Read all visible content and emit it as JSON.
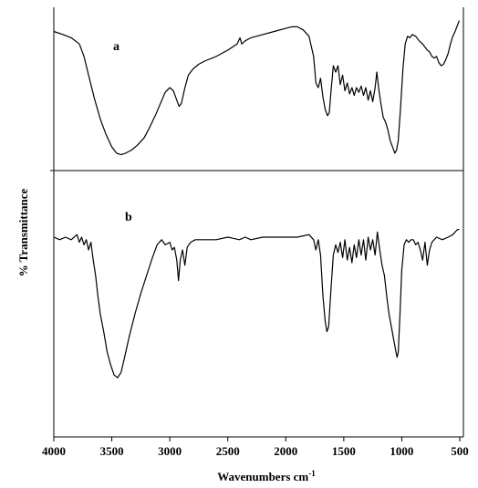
{
  "chart_data": {
    "type": "line",
    "xlabel": "Wavenumbers cm",
    "xlabel_sup": "-1",
    "ylabel": "% Transmittance",
    "xlim": [
      4000,
      500
    ],
    "x_reversed": true,
    "x_ticks": [
      4000,
      3500,
      3000,
      2500,
      2000,
      1500,
      1000,
      500
    ],
    "grid": false,
    "legend": "none",
    "line_color": "#000000",
    "panels": [
      {
        "label": "a",
        "points": [
          [
            4000,
            88
          ],
          [
            3920,
            86
          ],
          [
            3850,
            84
          ],
          [
            3780,
            80
          ],
          [
            3740,
            72
          ],
          [
            3700,
            60
          ],
          [
            3650,
            45
          ],
          [
            3600,
            32
          ],
          [
            3550,
            22
          ],
          [
            3500,
            14
          ],
          [
            3460,
            10
          ],
          [
            3420,
            9
          ],
          [
            3380,
            10
          ],
          [
            3330,
            12
          ],
          [
            3280,
            15
          ],
          [
            3220,
            20
          ],
          [
            3170,
            27
          ],
          [
            3120,
            35
          ],
          [
            3080,
            42
          ],
          [
            3040,
            49
          ],
          [
            3000,
            52
          ],
          [
            2970,
            50
          ],
          [
            2940,
            44
          ],
          [
            2920,
            40
          ],
          [
            2900,
            42
          ],
          [
            2870,
            52
          ],
          [
            2840,
            60
          ],
          [
            2800,
            64
          ],
          [
            2750,
            67
          ],
          [
            2700,
            69
          ],
          [
            2600,
            72
          ],
          [
            2500,
            76
          ],
          [
            2420,
            80
          ],
          [
            2395,
            84
          ],
          [
            2380,
            80
          ],
          [
            2350,
            82
          ],
          [
            2300,
            84
          ],
          [
            2200,
            86
          ],
          [
            2100,
            88
          ],
          [
            2000,
            90
          ],
          [
            1950,
            91
          ],
          [
            1900,
            91
          ],
          [
            1850,
            89
          ],
          [
            1800,
            85
          ],
          [
            1760,
            72
          ],
          [
            1740,
            55
          ],
          [
            1720,
            52
          ],
          [
            1700,
            58
          ],
          [
            1680,
            46
          ],
          [
            1660,
            38
          ],
          [
            1640,
            34
          ],
          [
            1625,
            36
          ],
          [
            1610,
            50
          ],
          [
            1590,
            66
          ],
          [
            1570,
            62
          ],
          [
            1550,
            66
          ],
          [
            1530,
            54
          ],
          [
            1510,
            60
          ],
          [
            1490,
            50
          ],
          [
            1470,
            55
          ],
          [
            1450,
            48
          ],
          [
            1430,
            52
          ],
          [
            1410,
            47
          ],
          [
            1390,
            52
          ],
          [
            1370,
            49
          ],
          [
            1350,
            53
          ],
          [
            1330,
            47
          ],
          [
            1310,
            52
          ],
          [
            1290,
            44
          ],
          [
            1270,
            50
          ],
          [
            1250,
            43
          ],
          [
            1230,
            52
          ],
          [
            1215,
            62
          ],
          [
            1200,
            52
          ],
          [
            1180,
            42
          ],
          [
            1160,
            33
          ],
          [
            1140,
            30
          ],
          [
            1120,
            25
          ],
          [
            1100,
            18
          ],
          [
            1080,
            14
          ],
          [
            1060,
            10
          ],
          [
            1045,
            12
          ],
          [
            1030,
            18
          ],
          [
            1010,
            40
          ],
          [
            990,
            64
          ],
          [
            970,
            80
          ],
          [
            950,
            85
          ],
          [
            930,
            84
          ],
          [
            910,
            86
          ],
          [
            880,
            85
          ],
          [
            850,
            82
          ],
          [
            820,
            80
          ],
          [
            800,
            78
          ],
          [
            780,
            76
          ],
          [
            760,
            75
          ],
          [
            740,
            72
          ],
          [
            720,
            71
          ],
          [
            700,
            72
          ],
          [
            680,
            68
          ],
          [
            660,
            66
          ],
          [
            640,
            67
          ],
          [
            620,
            70
          ],
          [
            600,
            74
          ],
          [
            580,
            80
          ],
          [
            560,
            85
          ],
          [
            540,
            88
          ],
          [
            520,
            92
          ],
          [
            505,
            95
          ]
        ]
      },
      {
        "label": "b",
        "points": [
          [
            4000,
            75
          ],
          [
            3950,
            74
          ],
          [
            3900,
            75
          ],
          [
            3850,
            74
          ],
          [
            3800,
            76
          ],
          [
            3780,
            73
          ],
          [
            3760,
            75
          ],
          [
            3740,
            72
          ],
          [
            3720,
            74
          ],
          [
            3700,
            70
          ],
          [
            3680,
            73
          ],
          [
            3660,
            66
          ],
          [
            3640,
            60
          ],
          [
            3620,
            52
          ],
          [
            3600,
            45
          ],
          [
            3570,
            38
          ],
          [
            3540,
            30
          ],
          [
            3510,
            25
          ],
          [
            3480,
            21
          ],
          [
            3450,
            20
          ],
          [
            3420,
            22
          ],
          [
            3390,
            28
          ],
          [
            3350,
            36
          ],
          [
            3300,
            45
          ],
          [
            3250,
            53
          ],
          [
            3200,
            60
          ],
          [
            3150,
            67
          ],
          [
            3110,
            72
          ],
          [
            3070,
            74
          ],
          [
            3040,
            72
          ],
          [
            3000,
            73
          ],
          [
            2980,
            70
          ],
          [
            2960,
            71
          ],
          [
            2940,
            66
          ],
          [
            2925,
            58
          ],
          [
            2910,
            66
          ],
          [
            2890,
            70
          ],
          [
            2870,
            64
          ],
          [
            2850,
            71
          ],
          [
            2820,
            73
          ],
          [
            2780,
            74
          ],
          [
            2700,
            74
          ],
          [
            2600,
            74
          ],
          [
            2500,
            75
          ],
          [
            2400,
            74
          ],
          [
            2350,
            75
          ],
          [
            2300,
            74
          ],
          [
            2200,
            75
          ],
          [
            2100,
            75
          ],
          [
            2000,
            75
          ],
          [
            1900,
            75
          ],
          [
            1800,
            76
          ],
          [
            1760,
            74
          ],
          [
            1740,
            70
          ],
          [
            1720,
            74
          ],
          [
            1700,
            68
          ],
          [
            1680,
            52
          ],
          [
            1660,
            42
          ],
          [
            1645,
            38
          ],
          [
            1630,
            40
          ],
          [
            1610,
            55
          ],
          [
            1590,
            68
          ],
          [
            1570,
            72
          ],
          [
            1550,
            69
          ],
          [
            1530,
            73
          ],
          [
            1510,
            67
          ],
          [
            1490,
            74
          ],
          [
            1470,
            66
          ],
          [
            1450,
            71
          ],
          [
            1430,
            65
          ],
          [
            1410,
            72
          ],
          [
            1390,
            67
          ],
          [
            1370,
            74
          ],
          [
            1350,
            68
          ],
          [
            1330,
            74
          ],
          [
            1310,
            66
          ],
          [
            1290,
            75
          ],
          [
            1270,
            70
          ],
          [
            1250,
            74
          ],
          [
            1230,
            68
          ],
          [
            1210,
            77
          ],
          [
            1190,
            70
          ],
          [
            1170,
            64
          ],
          [
            1150,
            60
          ],
          [
            1130,
            52
          ],
          [
            1110,
            45
          ],
          [
            1090,
            40
          ],
          [
            1070,
            35
          ],
          [
            1050,
            30
          ],
          [
            1040,
            28
          ],
          [
            1030,
            30
          ],
          [
            1015,
            45
          ],
          [
            1000,
            62
          ],
          [
            980,
            72
          ],
          [
            960,
            74
          ],
          [
            940,
            73
          ],
          [
            920,
            74
          ],
          [
            900,
            74
          ],
          [
            880,
            72
          ],
          [
            860,
            73
          ],
          [
            840,
            70
          ],
          [
            820,
            66
          ],
          [
            800,
            73
          ],
          [
            780,
            64
          ],
          [
            760,
            70
          ],
          [
            740,
            73
          ],
          [
            720,
            74
          ],
          [
            700,
            75
          ],
          [
            650,
            74
          ],
          [
            600,
            75
          ],
          [
            560,
            76
          ],
          [
            520,
            78
          ],
          [
            505,
            78
          ]
        ]
      }
    ]
  }
}
